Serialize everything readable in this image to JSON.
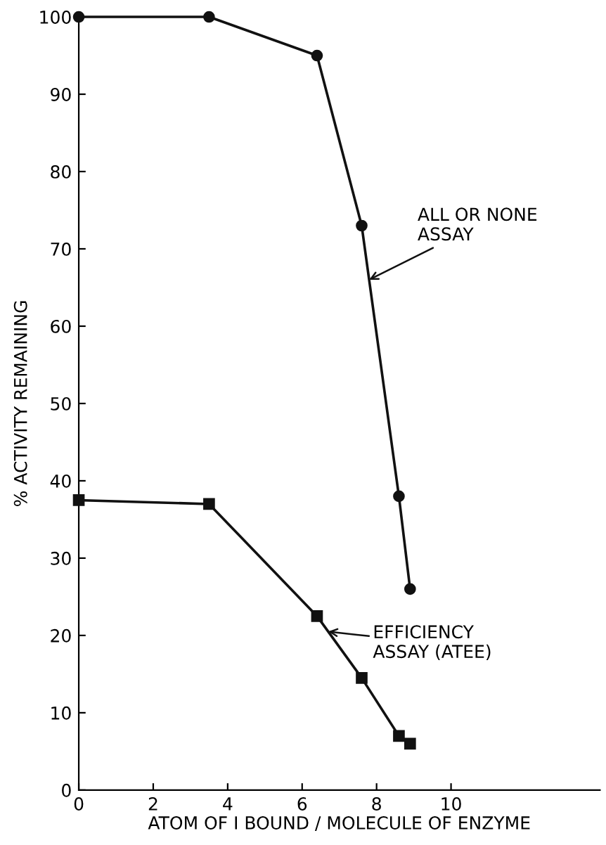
{
  "chart_data": {
    "type": "line",
    "xlabel": "ATOM OF I BOUND / MOLECULE OF ENZYME",
    "ylabel": "% ACTIVITY REMAINING",
    "series": [
      {
        "color": "#111111",
        "marker": "circle",
        "x": [
          0,
          3.5,
          6.4,
          7.6,
          8.6,
          8.9
        ],
        "values": [
          100,
          100,
          95,
          73,
          38,
          26
        ]
      },
      {
        "color": "#111111",
        "marker": "square",
        "x": [
          0,
          3.5,
          6.4,
          7.6,
          8.6,
          8.9
        ],
        "values": [
          37.5,
          37,
          22.5,
          14.5,
          7,
          6
        ]
      }
    ],
    "xlim": [
      0,
      14
    ],
    "xticks": [
      0,
      2,
      4,
      6,
      8,
      10
    ],
    "ylim": [
      0,
      100
    ],
    "yticks": [
      0,
      10,
      20,
      30,
      40,
      50,
      60,
      70,
      80,
      90,
      100
    ],
    "grid": false,
    "legend": false,
    "annotations": [
      {
        "text": "ALL OR NONE\nASSAY",
        "x": 7.8,
        "y": 66
      },
      {
        "text": "EFFICIENCY\nASSAY (ATEE)",
        "x": 6.7,
        "y": 20.5
      }
    ]
  }
}
